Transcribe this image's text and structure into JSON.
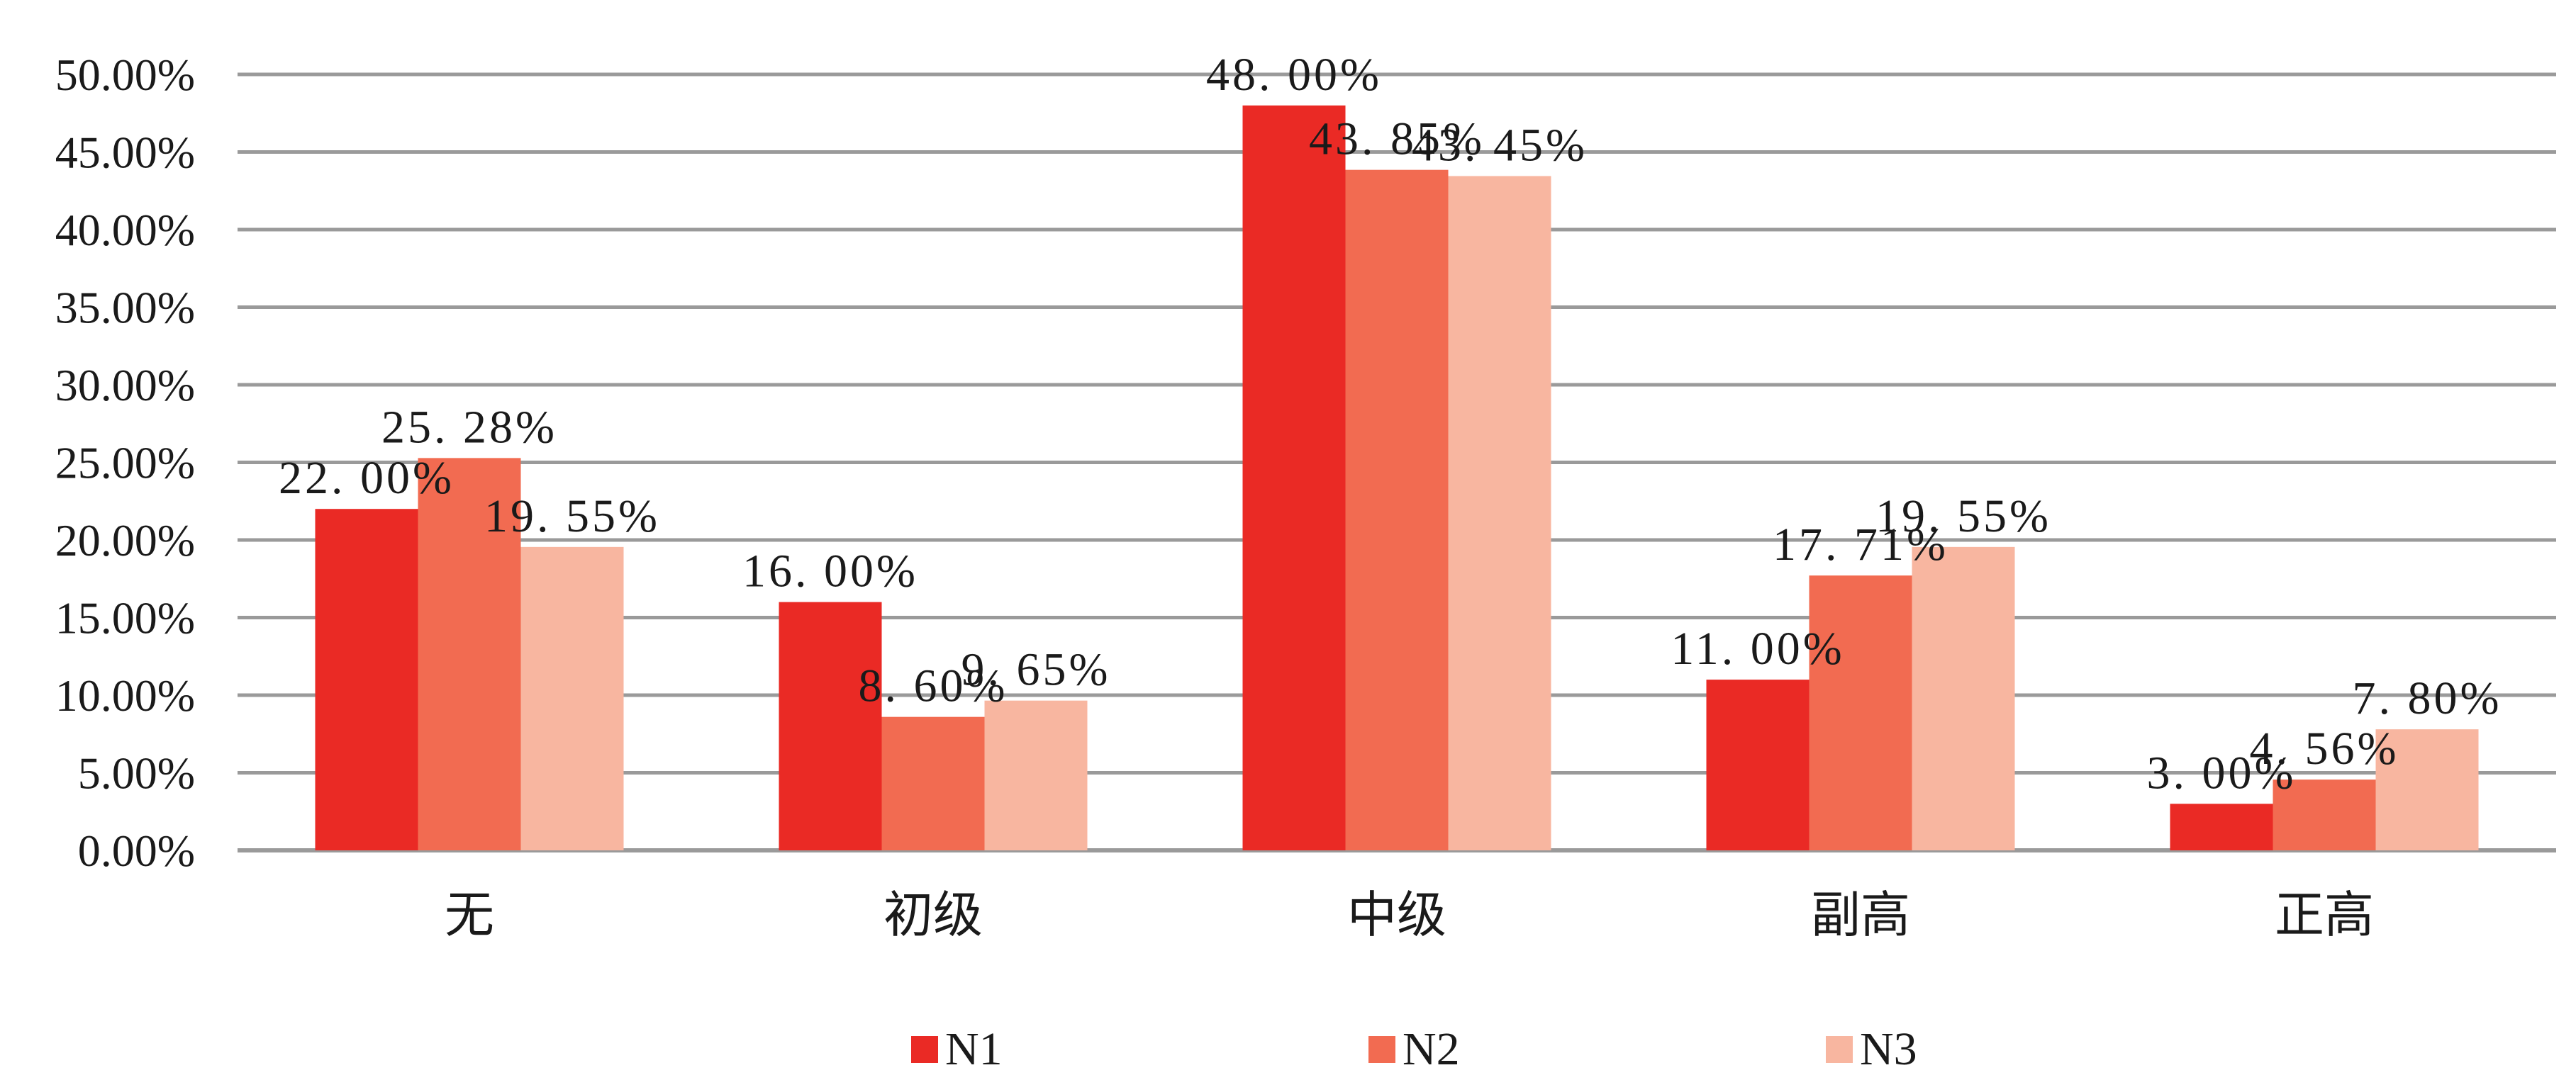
{
  "chart_data": {
    "type": "bar",
    "categories": [
      "无",
      "初级",
      "中级",
      "副高",
      "正高"
    ],
    "series": [
      {
        "name": "N1",
        "color": "#ea2a25",
        "values": [
          22.0,
          16.0,
          48.0,
          11.0,
          3.0
        ],
        "labels": [
          "22. 00%",
          "16. 00%",
          "48. 00%",
          "11. 00%",
          "3. 00%"
        ]
      },
      {
        "name": "N2",
        "color": "#f26b51",
        "values": [
          25.28,
          8.6,
          43.85,
          17.71,
          4.56
        ],
        "labels": [
          "25. 28%",
          "8. 60%",
          "43. 85%",
          "17. 71%",
          "4. 56%"
        ]
      },
      {
        "name": "N3",
        "color": "#f8b6a0",
        "values": [
          19.55,
          9.65,
          43.45,
          19.55,
          7.8
        ],
        "labels": [
          "19. 55%",
          "9. 65%",
          "43. 45%",
          "19. 55%",
          "7. 80%"
        ]
      }
    ],
    "y_ticks": [
      "0.00%",
      "5.00%",
      "10.00%",
      "15.00%",
      "20.00%",
      "25.00%",
      "30.00%",
      "35.00%",
      "40.00%",
      "45.00%",
      "50.00%"
    ],
    "ylim": [
      0,
      50
    ],
    "grid": true,
    "legend_position": "bottom",
    "title": "",
    "xlabel": "",
    "ylabel": ""
  }
}
